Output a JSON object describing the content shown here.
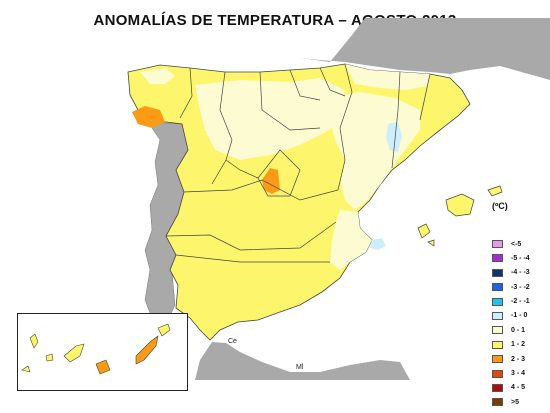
{
  "title": "ANOMALÍAS DE TEMPERATURA – AGOSTO 2013",
  "legend": {
    "unit": "(ºC)",
    "items": [
      {
        "label": "<-5",
        "color": "#e69ae8"
      },
      {
        "label": "-5 - -4",
        "color": "#a62bd6"
      },
      {
        "label": "-4 - -3",
        "color": "#10336f"
      },
      {
        "label": "-3 - -2",
        "color": "#1f63e0"
      },
      {
        "label": "-2 - -1",
        "color": "#23c0f0"
      },
      {
        "label": "-1 - 0",
        "color": "#cfeefb"
      },
      {
        "label": "0 - 1",
        "color": "#fdfbd2"
      },
      {
        "label": "1 - 2",
        "color": "#fdf56b"
      },
      {
        "label": "2 - 3",
        "color": "#fb9a14"
      },
      {
        "label": "3 - 4",
        "color": "#e04a12"
      },
      {
        "label": "4 - 5",
        "color": "#a80e0e"
      },
      {
        "label": ">5",
        "color": "#7a3d0a"
      }
    ]
  },
  "labels": {
    "ceuta": "Ce",
    "melilla": "Ml"
  }
}
